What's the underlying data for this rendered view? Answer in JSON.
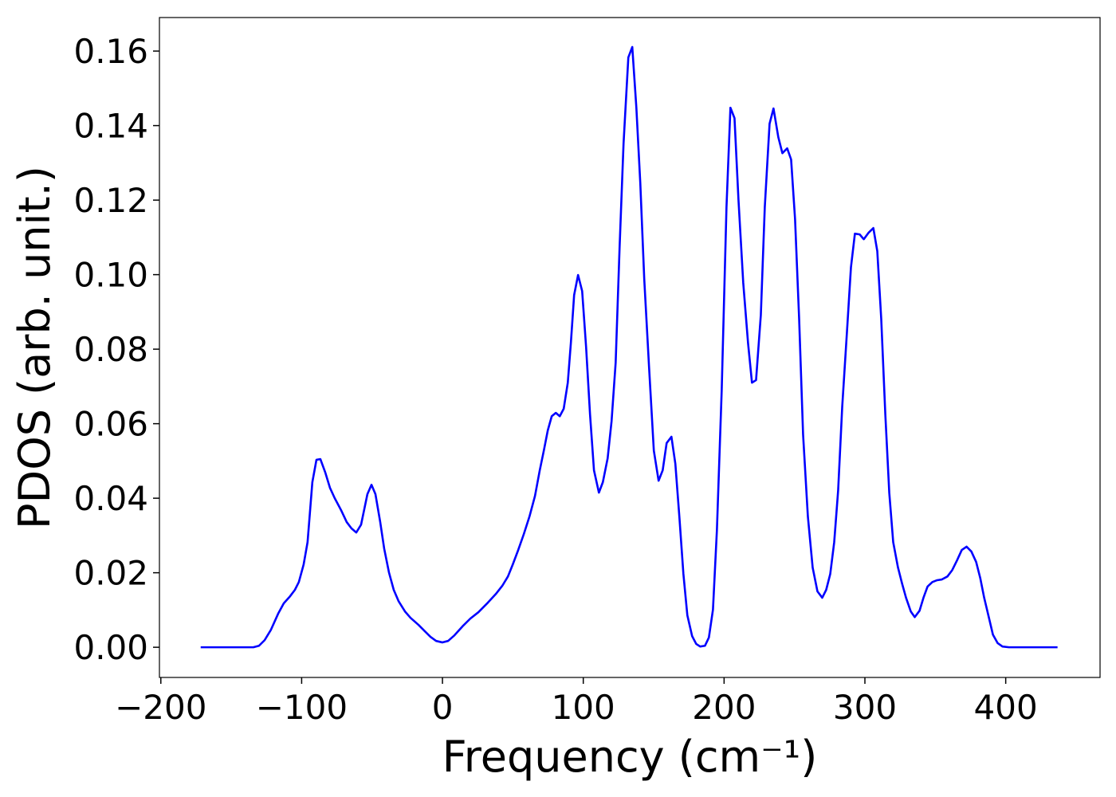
{
  "chart_data": {
    "type": "line",
    "xlabel": "Frequency (cm⁻¹)",
    "ylabel": "PDOS (arb. unit.)",
    "xlim": [
      -201,
      467
    ],
    "ylim": [
      -0.0081,
      0.169
    ],
    "xticks": [
      {
        "value": -200,
        "label": "−200"
      },
      {
        "value": -100,
        "label": "−100"
      },
      0,
      100,
      200,
      300,
      400
    ],
    "yticks": [
      {
        "value": 0,
        "label": "0.00"
      },
      0.02,
      0.04,
      0.06,
      0.08,
      {
        "value": 0.1,
        "label": "0.10"
      },
      0.12,
      0.14,
      0.16
    ],
    "grid": false,
    "series": [
      {
        "color": "#0000ff",
        "x": [
          -171.7,
          -134.3,
          -130.3,
          -126.3,
          -121.8,
          -116.7,
          -112.7,
          -108.2,
          -104.8,
          -102.0,
          -98.6,
          -95.8,
          -92.4,
          -89.5,
          -86.7,
          -83.3,
          -79.9,
          -76.5,
          -72.0,
          -68.0,
          -64.6,
          -61.2,
          -57.8,
          -53.3,
          -50.4,
          -47.6,
          -44.2,
          -41.4,
          -38.0,
          -34.6,
          -31.2,
          -26.6,
          -22.7,
          -17.0,
          -12.5,
          -8.5,
          -4.5,
          0,
          4.0,
          8.5,
          14.2,
          19.8,
          25.5,
          32.3,
          37.9,
          42.5,
          46.5,
          49.9,
          53.8,
          57.8,
          61.8,
          65.7,
          69.1,
          72.0,
          74.8,
          77.6,
          80.5,
          83.3,
          86.1,
          89.0,
          91.2,
          93.5,
          96.3,
          99.2,
          102.0,
          104.8,
          107.6,
          111.1,
          113.9,
          117.3,
          120.1,
          123.0,
          125.8,
          128.6,
          132.0,
          134.8,
          137.7,
          140.5,
          143.3,
          146.7,
          150.1,
          153.5,
          156.4,
          159.2,
          162.6,
          165.4,
          168.3,
          171.1,
          173.9,
          177.3,
          180.2,
          183.0,
          186.4,
          189.2,
          192.1,
          194.9,
          198.3,
          201.7,
          204.5,
          207.4,
          210.2,
          213.6,
          217.0,
          219.8,
          222.7,
          226.1,
          228.9,
          232.3,
          235.1,
          238.5,
          241.4,
          244.8,
          247.6,
          250.4,
          253.3,
          256.1,
          259.5,
          262.9,
          266.3,
          269.7,
          272.5,
          275.4,
          278.2,
          281.0,
          283.9,
          287.3,
          290.1,
          292.9,
          296.3,
          299.2,
          302.5,
          306.0,
          308.8,
          311.6,
          314.5,
          317.3,
          320.1,
          323.5,
          326.4,
          329.2,
          332.6,
          335.4,
          338.8,
          341.6,
          344.5,
          347.9,
          351.3,
          354.7,
          358.6,
          362.0,
          365.4,
          368.8,
          372.2,
          375.6,
          379.0,
          381.9,
          384.7,
          388.1,
          390.9,
          394.3,
          397.7,
          402.3,
          436.8
        ],
        "values": [
          0,
          0,
          0.0004,
          0.0019,
          0.0047,
          0.009,
          0.0118,
          0.0137,
          0.0154,
          0.0175,
          0.0222,
          0.0282,
          0.0443,
          0.0503,
          0.0505,
          0.047,
          0.0428,
          0.04,
          0.0368,
          0.0336,
          0.0319,
          0.0308,
          0.0329,
          0.0411,
          0.0436,
          0.0411,
          0.0336,
          0.0265,
          0.0201,
          0.0154,
          0.0124,
          0.0096,
          0.0079,
          0.006,
          0.0043,
          0.0028,
          0.0017,
          0.0013,
          0.0017,
          0.0032,
          0.0056,
          0.0077,
          0.0094,
          0.012,
          0.0143,
          0.0165,
          0.019,
          0.0222,
          0.0261,
          0.0304,
          0.0351,
          0.0406,
          0.0475,
          0.0528,
          0.0582,
          0.062,
          0.0629,
          0.062,
          0.064,
          0.071,
          0.0817,
          0.0945,
          0.0999,
          0.0956,
          0.0806,
          0.0625,
          0.0475,
          0.0415,
          0.0443,
          0.0507,
          0.0607,
          0.0764,
          0.1074,
          0.1352,
          0.1583,
          0.1611,
          0.1448,
          0.1245,
          0.0988,
          0.0753,
          0.0528,
          0.0447,
          0.0475,
          0.0548,
          0.0565,
          0.0492,
          0.0347,
          0.0197,
          0.0086,
          0.003,
          0.0009,
          0.0002,
          0.0004,
          0.0026,
          0.0101,
          0.0314,
          0.0689,
          0.1181,
          0.1448,
          0.142,
          0.1202,
          0.0978,
          0.0817,
          0.071,
          0.0717,
          0.0892,
          0.1181,
          0.1405,
          0.1446,
          0.1369,
          0.1326,
          0.1339,
          0.1309,
          0.1149,
          0.0881,
          0.0571,
          0.0351,
          0.0214,
          0.015,
          0.0133,
          0.0154,
          0.0197,
          0.0282,
          0.0421,
          0.0646,
          0.0849,
          0.102,
          0.111,
          0.1108,
          0.1095,
          0.1112,
          0.1125,
          0.1063,
          0.0881,
          0.0625,
          0.0415,
          0.0282,
          0.0214,
          0.0171,
          0.0133,
          0.0096,
          0.0081,
          0.0098,
          0.0133,
          0.0163,
          0.0175,
          0.018,
          0.0182,
          0.019,
          0.0207,
          0.0233,
          0.0261,
          0.027,
          0.0257,
          0.0229,
          0.0186,
          0.0133,
          0.0079,
          0.0034,
          0.0011,
          0.0002,
          0,
          0
        ]
      }
    ]
  }
}
